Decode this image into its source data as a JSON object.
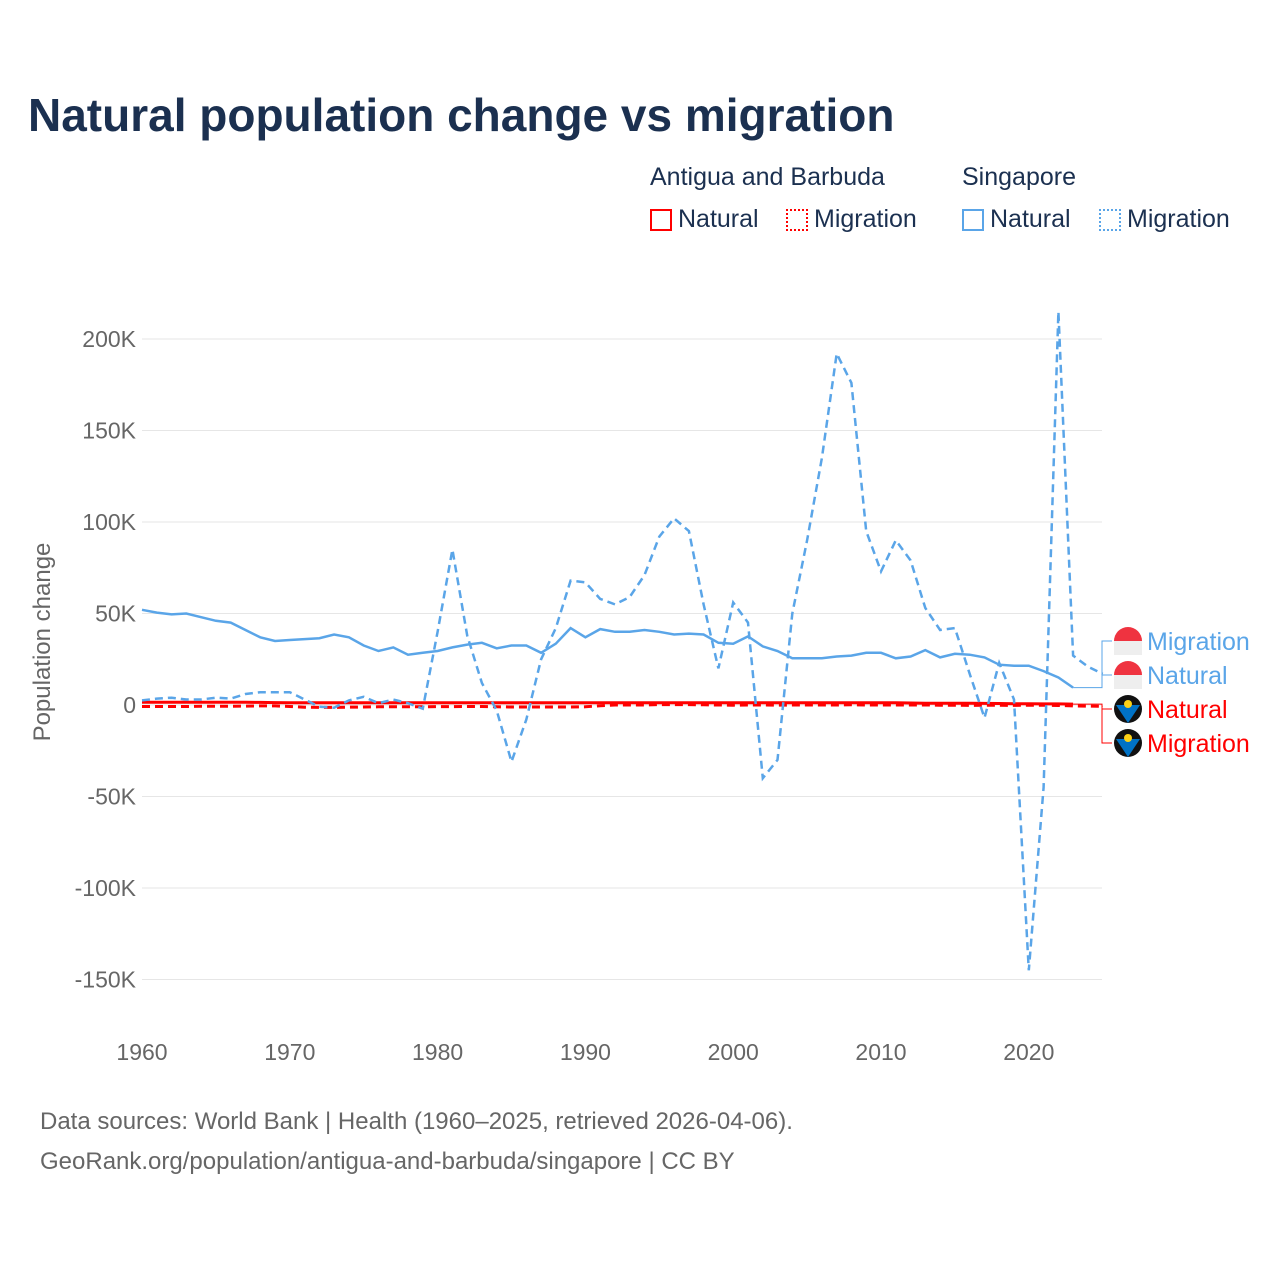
{
  "title": "Natural population change vs migration",
  "legend": {
    "groups": [
      {
        "name": "Antigua and Barbuda",
        "items": [
          "Natural",
          "Migration"
        ],
        "color": "#ff0000"
      },
      {
        "name": "Singapore",
        "items": [
          "Natural",
          "Migration"
        ],
        "color": "#5aa5e8"
      }
    ]
  },
  "source": [
    "Data sources: World Bank | Health (1960–2025, retrieved 2026-04-06).",
    "GeoRank.org/population/antigua-and-barbuda/singapore | CC BY"
  ],
  "chart_data": {
    "type": "line",
    "title": "Natural population change vs migration",
    "xlabel": "",
    "ylabel": "Population change",
    "xlim": [
      1960,
      2025
    ],
    "ylim": [
      -165000,
      215000
    ],
    "xticks": [
      1960,
      1970,
      1980,
      1990,
      2000,
      2010,
      2020
    ],
    "yticks": [
      {
        "v": 200000,
        "l": "200K"
      },
      {
        "v": 150000,
        "l": "150K"
      },
      {
        "v": 100000,
        "l": "100K"
      },
      {
        "v": 50000,
        "l": "50K"
      },
      {
        "v": 0,
        "l": "0"
      },
      {
        "v": -50000,
        "l": "-50K"
      },
      {
        "v": -100000,
        "l": "-100K"
      },
      {
        "v": -150000,
        "l": "-150K"
      }
    ],
    "grid": true,
    "series": [
      {
        "name": "Singapore Natural",
        "label": "Natural",
        "color": "#5aa5e8",
        "dash": false,
        "start": 1960,
        "values": [
          52,
          50.5,
          49.5,
          50,
          48,
          46,
          45,
          41,
          37,
          35,
          35.5,
          36,
          36.5,
          38.5,
          37,
          32.5,
          29.5,
          31.5,
          27.5,
          28.5,
          29.5,
          31.5,
          33,
          34,
          31,
          32.5,
          32.5,
          28.5,
          33.5,
          42,
          37,
          41.5,
          40,
          40,
          41,
          40,
          38.5,
          39,
          38.5,
          34,
          33.5,
          37.5,
          32,
          29.5,
          25.5,
          25.5,
          25.5,
          26.5,
          27,
          28.5,
          28.5,
          25.5,
          26.5,
          30,
          26,
          28,
          27.5,
          26,
          22,
          21.5,
          21.5,
          18.5,
          15,
          9.5
        ]
      },
      {
        "name": "Singapore Migration",
        "label": "Migration",
        "color": "#5aa5e8",
        "dash": true,
        "start": 1960,
        "values": [
          2.5,
          3.5,
          4,
          3,
          3,
          4,
          3.5,
          6,
          7,
          7,
          7,
          3,
          -1,
          -1.5,
          2.5,
          4.5,
          1,
          3,
          1,
          -2,
          40,
          85,
          38,
          12,
          -3,
          -31,
          -8,
          25,
          42,
          68,
          67,
          58,
          55,
          59,
          71,
          92,
          102,
          95,
          55,
          20,
          56,
          45,
          -40,
          -30,
          50,
          90,
          135,
          192,
          176,
          95,
          73,
          90,
          79,
          53,
          41,
          42,
          17,
          -7,
          23,
          3,
          -145,
          -45,
          215,
          27,
          21,
          17
        ]
      },
      {
        "name": "Antigua and Barbuda Natural",
        "label": "Natural",
        "color": "#ff0000",
        "dash": false,
        "start": 1960,
        "values": [
          1.5,
          1.5,
          1.5,
          1.5,
          1.5,
          1.5,
          1.5,
          1.5,
          1.4,
          1.3,
          1.2,
          1.2,
          1.2,
          1.2,
          1.2,
          1.2,
          1.2,
          1.2,
          1.2,
          1.2,
          1.2,
          1.2,
          1.2,
          1.2,
          1.2,
          1.2,
          1.2,
          1.2,
          1.2,
          1.2,
          1.2,
          1.2,
          1.2,
          1.2,
          1.2,
          1.2,
          1.2,
          1.2,
          1.2,
          1.2,
          1.2,
          1.2,
          1.2,
          1.2,
          1.2,
          1.2,
          1.2,
          1.2,
          1.2,
          1.2,
          1.2,
          1.2,
          1.1,
          1,
          1,
          1,
          1,
          0.9,
          0.8,
          0.7,
          0.7,
          0.6,
          0.6,
          0.5
        ]
      },
      {
        "name": "Antigua and Barbuda Migration",
        "label": "Migration",
        "color": "#ff0000",
        "dash": true,
        "start": 1960,
        "values": [
          -0.8,
          -0.8,
          -0.8,
          -0.8,
          -0.7,
          -0.7,
          -0.7,
          -0.6,
          -0.5,
          -0.5,
          -0.8,
          -1.2,
          -1.3,
          -1.3,
          -1.2,
          -1.1,
          -1,
          -1,
          -1,
          -1,
          -0.9,
          -0.9,
          -0.8,
          -0.8,
          -1,
          -1.1,
          -1.1,
          -1.1,
          -1.1,
          -1.1,
          -1,
          -0.4,
          0,
          0,
          0,
          0.2,
          0.2,
          0.2,
          0.1,
          0,
          -0.1,
          0,
          0,
          -0.1,
          0,
          0,
          0,
          0,
          0.1,
          0,
          0,
          0,
          0,
          0,
          -0.1,
          -0.1,
          -0.2,
          -0.1,
          -0.1,
          -0.2,
          -0.1,
          -0.1,
          -0.3,
          -0.5,
          -0.6,
          -0.7
        ]
      }
    ],
    "end_labels": [
      {
        "text": "Migration",
        "color": "#5aa5e8",
        "flag": "singapore-flag"
      },
      {
        "text": "Natural",
        "color": "#5aa5e8",
        "flag": "singapore-flag"
      },
      {
        "text": "Natural",
        "color": "#ff0000",
        "flag": "antigua-flag"
      },
      {
        "text": "Migration",
        "color": "#ff0000",
        "flag": "antigua-flag"
      }
    ],
    "value_unit": "thousands"
  }
}
